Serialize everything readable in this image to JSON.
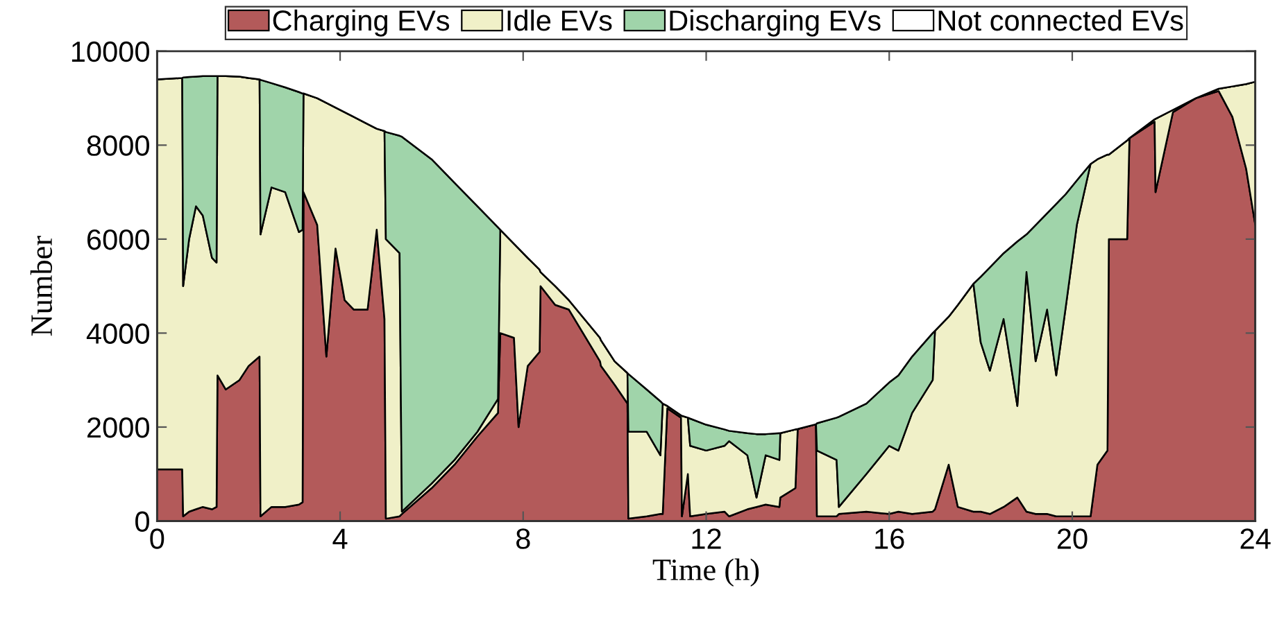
{
  "chart_data": {
    "type": "area",
    "stacked": true,
    "xlabel": "Time (h)",
    "ylabel": "Number",
    "x": [
      0,
      0.55,
      0.57,
      0.7,
      0.85,
      1.0,
      1.2,
      1.3,
      1.32,
      1.5,
      1.8,
      2.0,
      2.24,
      2.26,
      2.5,
      2.8,
      3.1,
      3.18,
      3.2,
      3.5,
      3.7,
      3.9,
      4.1,
      4.3,
      4.6,
      4.8,
      4.97,
      5.0,
      5.3,
      5.35,
      6.0,
      6.5,
      7.0,
      7.45,
      7.5,
      7.8,
      7.9,
      8.1,
      8.36,
      8.38,
      8.7,
      9.0,
      9.68,
      9.7,
      10.0,
      10.28,
      10.3,
      10.7,
      11.0,
      11.05,
      11.15,
      11.45,
      11.47,
      11.6,
      11.65,
      12.0,
      12.4,
      12.5,
      12.9,
      13.1,
      13.3,
      13.6,
      13.62,
      13.95,
      14.0,
      14.4,
      14.42,
      14.85,
      14.9,
      15.5,
      16.0,
      16.2,
      16.5,
      16.95,
      17.0,
      17.3,
      17.5,
      17.84,
      18.0,
      18.2,
      18.5,
      18.8,
      19.0,
      19.2,
      19.45,
      19.65,
      19.85,
      20.1,
      20.4,
      20.55,
      20.77,
      20.8,
      21.2,
      21.25,
      21.8,
      21.82,
      22.2,
      22.7,
      23.2,
      23.5,
      23.8,
      24.0
    ],
    "series": [
      {
        "name": "Charging EVs",
        "color": "#b35a5a",
        "values": [
          1100,
          1100,
          100,
          200,
          250,
          300,
          250,
          300,
          3100,
          2800,
          3000,
          3300,
          3500,
          100,
          300,
          300,
          350,
          400,
          7000,
          6300,
          3500,
          5800,
          4700,
          4500,
          4500,
          6200,
          4300,
          50,
          100,
          150,
          700,
          1200,
          1800,
          2300,
          4000,
          3900,
          2000,
          3300,
          3600,
          5000,
          4600,
          4500,
          3400,
          3300,
          2900,
          2500,
          50,
          100,
          150,
          150,
          2400,
          2200,
          100,
          1000,
          100,
          150,
          200,
          100,
          250,
          300,
          350,
          300,
          500,
          700,
          1960,
          2060,
          100,
          100,
          150,
          200,
          150,
          200,
          150,
          200,
          250,
          1200,
          300,
          200,
          200,
          150,
          300,
          500,
          200,
          150,
          150,
          100,
          100,
          100,
          100,
          1200,
          1500,
          6000,
          6000,
          8150,
          8500,
          7000,
          8700,
          9000,
          9150,
          8600,
          7500,
          6300
        ]
      },
      {
        "name": "Idle EVs",
        "color": "#f0f0c8",
        "values": [
          8300,
          8330,
          4900,
          5800,
          6450,
          6200,
          5350,
          5200,
          6370,
          6670,
          6460,
          6130,
          5900,
          6000,
          6800,
          6700,
          5800,
          5800,
          2100,
          2700,
          5400,
          3000,
          4000,
          4100,
          3950,
          2150,
          4000,
          5950,
          5600,
          50,
          100,
          100,
          100,
          300,
          2200,
          2000,
          3800,
          2300,
          1750,
          300,
          400,
          200,
          500,
          550,
          500,
          650,
          1850,
          1800,
          1250,
          2350,
          50,
          50,
          2140,
          1200,
          1500,
          1350,
          1400,
          1600,
          1150,
          200,
          1050,
          1000,
          1370,
          1250,
          0,
          0,
          1400,
          1200,
          150,
          800,
          1450,
          1300,
          2150,
          2800,
          3800,
          3150,
          4300,
          4850,
          3600,
          3050,
          4000,
          1950,
          5100,
          3250,
          4350,
          3000,
          4400,
          6200,
          7500,
          6500,
          6300,
          1800,
          2100,
          0,
          50,
          1560,
          50,
          0,
          50,
          650,
          1800,
          3050
        ]
      },
      {
        "name": "Discharging EVs",
        "color": "#a0d4aa",
        "values": [
          0,
          0,
          4440,
          3450,
          2760,
          2970,
          3870,
          3970,
          0,
          0,
          0,
          0,
          0,
          3290,
          2220,
          2230,
          2980,
          2900,
          0,
          0,
          0,
          0,
          0,
          0,
          0,
          0,
          0,
          2280,
          2500,
          7980,
          6900,
          5900,
          4800,
          3650,
          0,
          0,
          0,
          0,
          0,
          0,
          0,
          0,
          0,
          0,
          0,
          0,
          1230,
          900,
          1150,
          0,
          0,
          0,
          0,
          0,
          580,
          550,
          350,
          220,
          470,
          1350,
          450,
          570,
          0,
          0,
          0,
          0,
          580,
          900,
          1920,
          1500,
          1350,
          1600,
          1200,
          1000,
          0,
          0,
          0,
          0,
          1400,
          2200,
          1400,
          3500,
          800,
          2900,
          2050,
          3650,
          2450,
          950,
          0,
          0,
          0,
          0,
          0,
          0,
          0,
          0,
          0,
          0,
          0,
          0,
          0,
          0
        ]
      },
      {
        "name": "Not connected EVs",
        "color": "#ffffff",
        "values": [
          600,
          570,
          560,
          550,
          540,
          530,
          530,
          530,
          530,
          530,
          540,
          570,
          600,
          610,
          680,
          770,
          870,
          900,
          900,
          1000,
          1100,
          1200,
          1300,
          1400,
          1550,
          1650,
          1700,
          1720,
          1800,
          1820,
          2300,
          2800,
          3300,
          3750,
          3800,
          4100,
          4200,
          4400,
          4650,
          4700,
          5000,
          5300,
          6100,
          6150,
          6600,
          6850,
          6870,
          7200,
          7450,
          7500,
          7550,
          7750,
          7760,
          7800,
          7820,
          7950,
          8050,
          8080,
          8130,
          8150,
          8150,
          8130,
          8130,
          8050,
          8040,
          7940,
          7920,
          7800,
          7780,
          7500,
          7050,
          6900,
          6500,
          6000,
          5950,
          5650,
          5400,
          4950,
          4800,
          4600,
          4300,
          4050,
          3900,
          3700,
          3450,
          3250,
          3050,
          2750,
          2400,
          2300,
          2200,
          2200,
          1900,
          1850,
          1450,
          1440,
          1250,
          1000,
          800,
          750,
          700,
          650
        ]
      }
    ],
    "xlim": [
      0,
      24
    ],
    "xticks": [
      0,
      4,
      8,
      12,
      16,
      20,
      24
    ],
    "ylim": [
      0,
      10000
    ],
    "yticks": [
      0,
      2000,
      4000,
      6000,
      8000,
      10000
    ],
    "grid": false,
    "legend": "top"
  }
}
